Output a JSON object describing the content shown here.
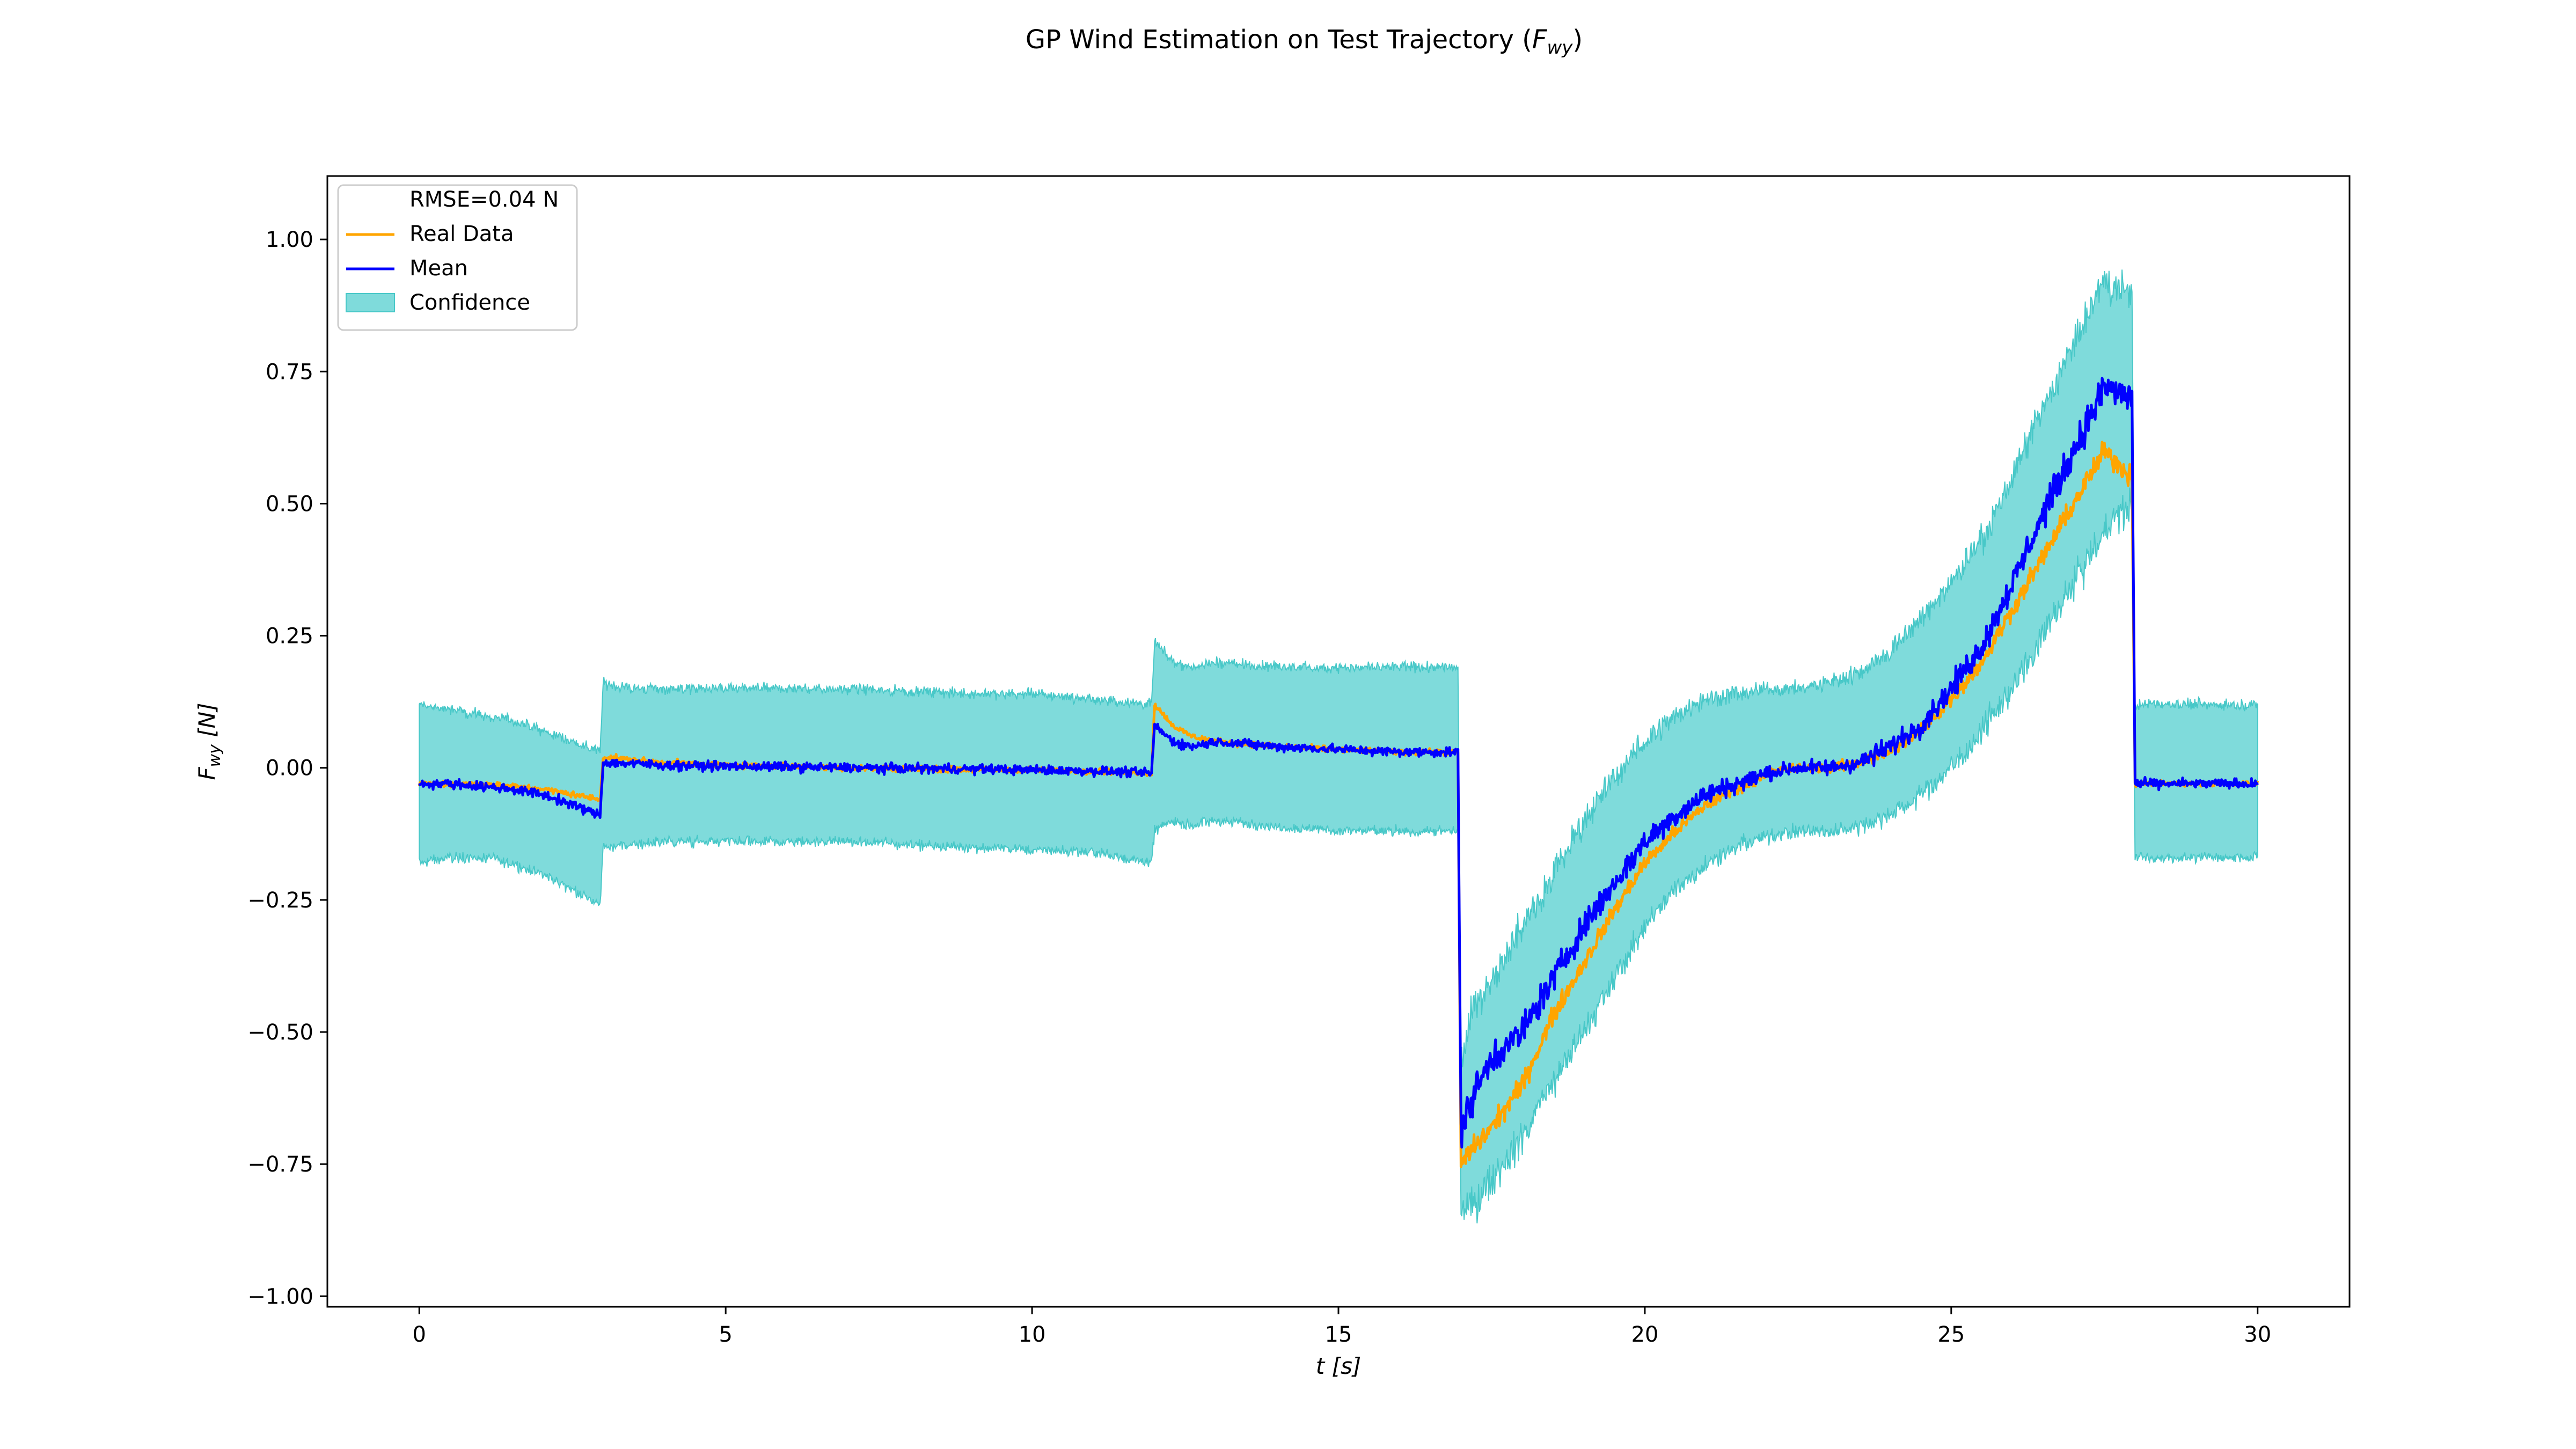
{
  "chart_data": {
    "type": "line",
    "title": "GP Wind Estimation on Test Trajectory (F_wy)",
    "title_parts": {
      "prefix": "GP Wind Estimation on Test Trajectory (",
      "symbol": "F",
      "subscript": "wy",
      "suffix": ")"
    },
    "xlabel": "t [s]",
    "xlabel_parts": {
      "var": "t",
      "unit": " [s]"
    },
    "ylabel": "F_wy [N]",
    "ylabel_parts": {
      "var": "F",
      "sub": "wy",
      "unit": " [N]"
    },
    "xlim": [
      -1.5,
      31.5
    ],
    "ylim": [
      -1.02,
      1.12
    ],
    "xticks": [
      0,
      5,
      10,
      15,
      20,
      25,
      30
    ],
    "xtick_labels": [
      "0",
      "5",
      "10",
      "15",
      "20",
      "25",
      "30"
    ],
    "yticks": [
      -1.0,
      -0.75,
      -0.5,
      -0.25,
      0.0,
      0.25,
      0.5,
      0.75,
      1.0
    ],
    "ytick_labels": [
      "−1.00",
      "−0.75",
      "−0.50",
      "−0.25",
      "0.00",
      "0.25",
      "0.50",
      "0.75",
      "1.00"
    ],
    "grid": false,
    "legend_position": "upper-left",
    "legend": [
      {
        "label": "RMSE=0.04 N",
        "kind": "text"
      },
      {
        "label": "Real Data",
        "kind": "line",
        "color": "#ffa500"
      },
      {
        "label": "Mean",
        "kind": "line",
        "color": "#0000ff"
      },
      {
        "label": "Confidence",
        "kind": "patch",
        "color": "#7fdbdb"
      }
    ],
    "series": [
      {
        "name": "Real Data",
        "color": "#ffa500",
        "x": [
          0.0,
          0.5,
          1.0,
          1.5,
          2.0,
          2.5,
          2.95,
          3.0,
          3.5,
          4.0,
          5.0,
          6.0,
          7.0,
          8.0,
          9.0,
          10.0,
          11.0,
          11.95,
          12.0,
          12.3,
          12.6,
          13.0,
          14.0,
          15.0,
          16.0,
          16.95,
          17.0,
          17.2,
          17.5,
          18.0,
          18.5,
          19.0,
          19.5,
          20.0,
          20.5,
          21.0,
          21.5,
          22.0,
          22.5,
          23.0,
          23.5,
          24.0,
          24.5,
          25.0,
          25.5,
          26.0,
          26.5,
          27.0,
          27.5,
          27.95,
          28.0,
          28.5,
          29.0,
          29.5,
          30.0
        ],
        "y": [
          -0.03,
          -0.03,
          -0.03,
          -0.035,
          -0.04,
          -0.05,
          -0.06,
          0.02,
          0.015,
          0.01,
          0.005,
          0.003,
          0.0,
          -0.002,
          -0.003,
          -0.004,
          -0.006,
          -0.01,
          0.12,
          0.08,
          0.06,
          0.05,
          0.04,
          0.035,
          0.03,
          0.03,
          -0.75,
          -0.72,
          -0.68,
          -0.6,
          -0.47,
          -0.37,
          -0.27,
          -0.18,
          -0.12,
          -0.07,
          -0.04,
          -0.01,
          0.0,
          0.0,
          0.01,
          0.03,
          0.07,
          0.13,
          0.2,
          0.3,
          0.4,
          0.5,
          0.6,
          0.55,
          -0.03,
          -0.03,
          -0.03,
          -0.03,
          -0.03
        ]
      },
      {
        "name": "Mean",
        "color": "#0000ff",
        "x": [
          0.0,
          0.5,
          1.0,
          1.5,
          2.0,
          2.5,
          2.95,
          3.0,
          3.5,
          4.0,
          5.0,
          6.0,
          7.0,
          8.0,
          9.0,
          10.0,
          11.0,
          11.95,
          12.0,
          12.3,
          12.6,
          13.0,
          14.0,
          15.0,
          16.0,
          16.95,
          17.0,
          17.2,
          17.5,
          18.0,
          18.5,
          19.0,
          19.5,
          20.0,
          20.5,
          21.0,
          21.5,
          22.0,
          22.5,
          23.0,
          23.5,
          24.0,
          24.5,
          25.0,
          25.5,
          26.0,
          26.5,
          27.0,
          27.5,
          27.95,
          28.0,
          28.5,
          29.0,
          29.5,
          30.0
        ],
        "y": [
          -0.03,
          -0.03,
          -0.035,
          -0.04,
          -0.05,
          -0.07,
          -0.09,
          0.01,
          0.008,
          0.005,
          0.003,
          0.002,
          0.0,
          -0.001,
          -0.002,
          -0.004,
          -0.006,
          -0.01,
          0.08,
          0.05,
          0.04,
          0.05,
          0.04,
          0.035,
          0.03,
          0.03,
          -0.68,
          -0.62,
          -0.55,
          -0.5,
          -0.4,
          -0.3,
          -0.22,
          -0.14,
          -0.09,
          -0.05,
          -0.03,
          -0.01,
          0.0,
          0.0,
          0.01,
          0.04,
          0.08,
          0.15,
          0.23,
          0.35,
          0.48,
          0.6,
          0.72,
          0.7,
          -0.03,
          -0.03,
          -0.03,
          -0.03,
          -0.03
        ]
      }
    ],
    "confidence_band": {
      "name": "Confidence",
      "color": "#7fdbdb",
      "x": [
        0.0,
        0.5,
        1.0,
        1.5,
        2.0,
        2.5,
        2.95,
        3.0,
        3.5,
        4.0,
        5.0,
        6.0,
        7.0,
        8.0,
        9.0,
        10.0,
        11.0,
        11.95,
        12.0,
        12.3,
        12.6,
        13.0,
        14.0,
        15.0,
        16.0,
        16.95,
        17.0,
        17.2,
        17.5,
        18.0,
        18.5,
        19.0,
        19.5,
        20.0,
        20.5,
        21.0,
        21.5,
        22.0,
        22.5,
        23.0,
        23.5,
        24.0,
        24.5,
        25.0,
        25.5,
        26.0,
        26.5,
        27.0,
        27.5,
        27.95,
        28.0,
        28.5,
        29.0,
        29.5,
        30.0
      ],
      "lower": [
        -0.18,
        -0.17,
        -0.17,
        -0.18,
        -0.2,
        -0.23,
        -0.26,
        -0.15,
        -0.145,
        -0.14,
        -0.14,
        -0.14,
        -0.14,
        -0.145,
        -0.15,
        -0.155,
        -0.16,
        -0.18,
        -0.12,
        -0.1,
        -0.11,
        -0.1,
        -0.11,
        -0.12,
        -0.12,
        -0.12,
        -0.85,
        -0.83,
        -0.78,
        -0.7,
        -0.6,
        -0.5,
        -0.4,
        -0.3,
        -0.23,
        -0.18,
        -0.15,
        -0.13,
        -0.12,
        -0.12,
        -0.11,
        -0.09,
        -0.05,
        0.0,
        0.07,
        0.15,
        0.25,
        0.35,
        0.45,
        0.5,
        -0.17,
        -0.17,
        -0.17,
        -0.17,
        -0.17
      ],
      "upper": [
        0.12,
        0.11,
        0.1,
        0.09,
        0.07,
        0.05,
        0.03,
        0.16,
        0.15,
        0.15,
        0.15,
        0.15,
        0.15,
        0.145,
        0.14,
        0.14,
        0.13,
        0.12,
        0.24,
        0.2,
        0.19,
        0.2,
        0.19,
        0.19,
        0.19,
        0.19,
        -0.55,
        -0.45,
        -0.4,
        -0.3,
        -0.2,
        -0.1,
        -0.02,
        0.05,
        0.1,
        0.13,
        0.14,
        0.15,
        0.15,
        0.16,
        0.18,
        0.22,
        0.28,
        0.35,
        0.43,
        0.55,
        0.68,
        0.8,
        0.92,
        0.9,
        0.12,
        0.12,
        0.12,
        0.12,
        0.12
      ]
    }
  }
}
